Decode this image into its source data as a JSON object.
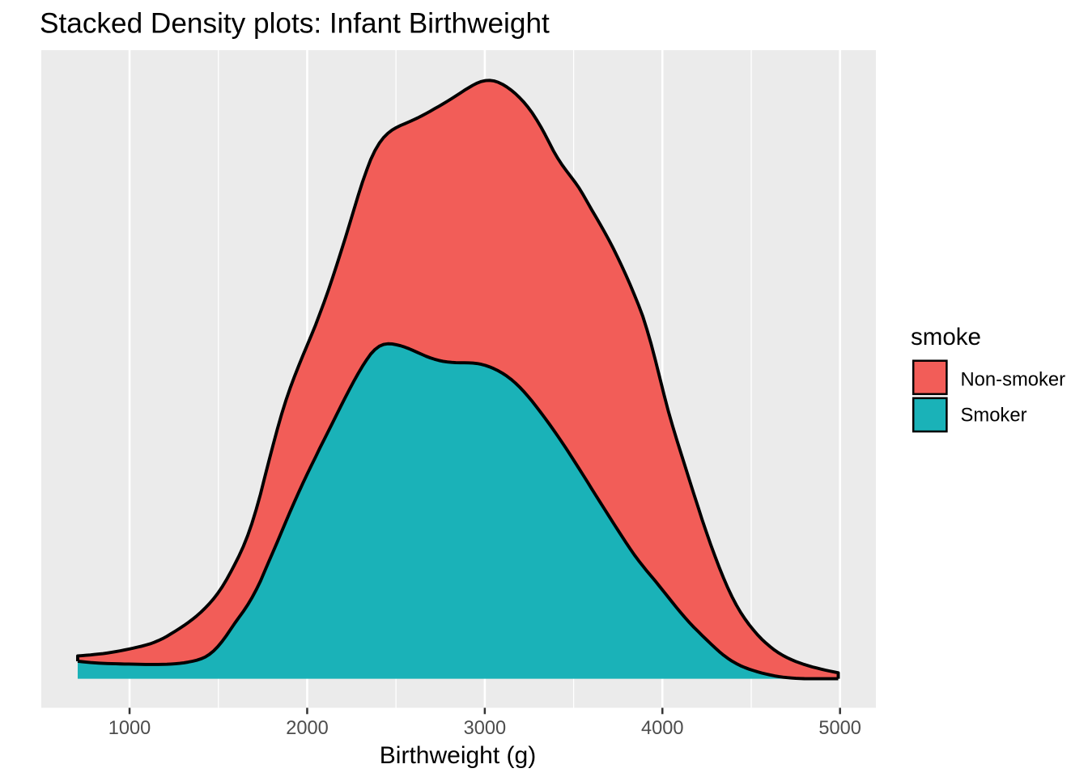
{
  "figure": {
    "title": "Stacked Density plots: Infant Birthweight",
    "x_axis": {
      "label": "Birthweight (g)"
    },
    "legend": {
      "title": "smoke",
      "entries": [
        {
          "label": "Non-smoker",
          "color": "#F25D58"
        },
        {
          "label": "Smoker",
          "color": "#1AB2B8"
        }
      ]
    }
  },
  "chart_data": {
    "type": "area",
    "subtype": "stacked-density",
    "title": "Stacked Density plots: Infant Birthweight",
    "xlabel": "Birthweight (g)",
    "ylabel": "",
    "x_ticks": [
      1000,
      2000,
      3000,
      4000,
      5000
    ],
    "x_minor_ticks": [
      500,
      1500,
      2500,
      3500,
      4500
    ],
    "xlim": [
      503,
      5202
    ],
    "ylim": [
      -0.0486,
      1.0505
    ],
    "y_unit": "relative density (stacked maximum = 1)",
    "grid": true,
    "legend_position": "right",
    "x": [
      708,
      732,
      756,
      780,
      804,
      827,
      851,
      875,
      899,
      923,
      947,
      971,
      995,
      1019,
      1043,
      1067,
      1091,
      1115,
      1138,
      1162,
      1186,
      1210,
      1234,
      1258,
      1282,
      1306,
      1330,
      1354,
      1378,
      1402,
      1426,
      1449,
      1473,
      1497,
      1521,
      1545,
      1569,
      1593,
      1617,
      1641,
      1665,
      1689,
      1713,
      1737,
      1760,
      1784,
      1808,
      1832,
      1856,
      1880,
      1904,
      1928,
      1952,
      1976,
      2000,
      2024,
      2048,
      2071,
      2095,
      2119,
      2143,
      2167,
      2191,
      2215,
      2239,
      2263,
      2287,
      2311,
      2335,
      2358,
      2382,
      2406,
      2430,
      2454,
      2478,
      2502,
      2526,
      2550,
      2574,
      2598,
      2622,
      2646,
      2669,
      2693,
      2717,
      2741,
      2765,
      2789,
      2813,
      2837,
      2861,
      2885,
      2909,
      2933,
      2957,
      2980,
      3004,
      3028,
      3052,
      3076,
      3100,
      3124,
      3148,
      3172,
      3196,
      3220,
      3244,
      3268,
      3291,
      3315,
      3339,
      3363,
      3387,
      3411,
      3435,
      3459,
      3483,
      3507,
      3531,
      3555,
      3579,
      3602,
      3626,
      3650,
      3674,
      3698,
      3722,
      3746,
      3770,
      3794,
      3818,
      3842,
      3866,
      3890,
      3913,
      3937,
      3961,
      3985,
      4009,
      4033,
      4057,
      4081,
      4105,
      4129,
      4153,
      4177,
      4201,
      4224,
      4248,
      4272,
      4296,
      4320,
      4344,
      4368,
      4392,
      4416,
      4440,
      4464,
      4488,
      4512,
      4535,
      4559,
      4583,
      4607,
      4631,
      4655,
      4679,
      4703,
      4727,
      4751,
      4775,
      4799,
      4823,
      4846,
      4870,
      4894,
      4918,
      4942,
      4966,
      4990
    ],
    "series": [
      {
        "name": "Smoker",
        "color": "#1AB2B8",
        "values": [
          0.0292,
          0.0285,
          0.0278,
          0.0271,
          0.0266,
          0.0261,
          0.0257,
          0.0254,
          0.0252,
          0.025,
          0.0248,
          0.0246,
          0.0245,
          0.0243,
          0.0242,
          0.024,
          0.0239,
          0.0238,
          0.0238,
          0.0239,
          0.024,
          0.0242,
          0.0246,
          0.0251,
          0.0257,
          0.0266,
          0.0278,
          0.0292,
          0.0309,
          0.0332,
          0.0363,
          0.0406,
          0.0464,
          0.0537,
          0.0623,
          0.072,
          0.0825,
          0.093,
          0.1029,
          0.1127,
          0.1234,
          0.1353,
          0.1486,
          0.1631,
          0.1791,
          0.1957,
          0.2121,
          0.2286,
          0.2456,
          0.2626,
          0.2792,
          0.2954,
          0.3113,
          0.3268,
          0.3419,
          0.3566,
          0.371,
          0.3853,
          0.3994,
          0.4135,
          0.4278,
          0.4421,
          0.4563,
          0.4703,
          0.4841,
          0.4974,
          0.5101,
          0.5221,
          0.5331,
          0.5427,
          0.5503,
          0.5556,
          0.5587,
          0.5598,
          0.5595,
          0.5582,
          0.5565,
          0.5542,
          0.5515,
          0.5484,
          0.5452,
          0.542,
          0.539,
          0.5363,
          0.534,
          0.532,
          0.5305,
          0.5294,
          0.5287,
          0.5283,
          0.5281,
          0.5281,
          0.5279,
          0.5276,
          0.5268,
          0.5255,
          0.5236,
          0.5211,
          0.5181,
          0.5146,
          0.5105,
          0.5058,
          0.5004,
          0.4943,
          0.4874,
          0.4799,
          0.4717,
          0.4632,
          0.4543,
          0.4451,
          0.4355,
          0.4258,
          0.4157,
          0.4055,
          0.395,
          0.3843,
          0.3733,
          0.3622,
          0.351,
          0.3398,
          0.3285,
          0.3173,
          0.306,
          0.2948,
          0.2835,
          0.2723,
          0.261,
          0.2499,
          0.2389,
          0.228,
          0.2173,
          0.207,
          0.1974,
          0.1884,
          0.1798,
          0.1714,
          0.1629,
          0.154,
          0.1451,
          0.1362,
          0.1273,
          0.1184,
          0.1098,
          0.1015,
          0.0935,
          0.086,
          0.079,
          0.0722,
          0.0653,
          0.0584,
          0.0517,
          0.0453,
          0.0394,
          0.0341,
          0.0294,
          0.0253,
          0.0217,
          0.0187,
          0.016,
          0.0137,
          0.0116,
          0.0096,
          0.0079,
          0.0063,
          0.0048,
          0.0036,
          0.0026,
          0.0018,
          0.0012,
          0.0007,
          0.0004,
          0.0001,
          0.0,
          0.0,
          0.0,
          0.0,
          0.0,
          0.0,
          0.0,
          0.0
        ]
      },
      {
        "name": "Non-smoker",
        "color": "#F25D58",
        "values": [
          0.0088,
          0.0101,
          0.0114,
          0.0127,
          0.014,
          0.0152,
          0.0163,
          0.0176,
          0.0189,
          0.0203,
          0.0218,
          0.0234,
          0.025,
          0.0267,
          0.0285,
          0.0303,
          0.0323,
          0.0344,
          0.0369,
          0.0398,
          0.043,
          0.0467,
          0.0506,
          0.0545,
          0.0584,
          0.0622,
          0.0661,
          0.07,
          0.0741,
          0.0781,
          0.0819,
          0.0848,
          0.0872,
          0.0892,
          0.091,
          0.0931,
          0.0955,
          0.0986,
          0.1029,
          0.1087,
          0.1158,
          0.1244,
          0.1343,
          0.1453,
          0.1565,
          0.1676,
          0.1785,
          0.1885,
          0.1965,
          0.2023,
          0.2064,
          0.2093,
          0.2115,
          0.2136,
          0.2154,
          0.2178,
          0.2208,
          0.2246,
          0.2296,
          0.2356,
          0.2424,
          0.2499,
          0.258,
          0.2666,
          0.2762,
          0.2865,
          0.2973,
          0.3077,
          0.3169,
          0.3252,
          0.3327,
          0.3394,
          0.3457,
          0.3517,
          0.3575,
          0.363,
          0.3682,
          0.3735,
          0.3793,
          0.3856,
          0.3921,
          0.3989,
          0.4056,
          0.4122,
          0.4186,
          0.4246,
          0.4303,
          0.4357,
          0.4408,
          0.4458,
          0.4506,
          0.4553,
          0.4598,
          0.4643,
          0.4687,
          0.4726,
          0.4761,
          0.4789,
          0.481,
          0.4822,
          0.4829,
          0.4832,
          0.4835,
          0.4837,
          0.4837,
          0.4837,
          0.4832,
          0.4821,
          0.4803,
          0.4776,
          0.4742,
          0.4701,
          0.4663,
          0.4643,
          0.4638,
          0.4648,
          0.4665,
          0.4681,
          0.4691,
          0.4685,
          0.4673,
          0.4664,
          0.4656,
          0.4645,
          0.4632,
          0.4614,
          0.459,
          0.4557,
          0.4517,
          0.4471,
          0.4416,
          0.4348,
          0.4269,
          0.4169,
          0.4038,
          0.3876,
          0.3689,
          0.3493,
          0.3297,
          0.3114,
          0.2955,
          0.2808,
          0.2667,
          0.2524,
          0.2378,
          0.2228,
          0.2079,
          0.1933,
          0.1793,
          0.1658,
          0.1531,
          0.1408,
          0.1291,
          0.1179,
          0.1075,
          0.098,
          0.0894,
          0.0816,
          0.0745,
          0.068,
          0.062,
          0.0566,
          0.0517,
          0.0472,
          0.0431,
          0.0395,
          0.0362,
          0.0333,
          0.0306,
          0.0281,
          0.0258,
          0.0236,
          0.0216,
          0.0196,
          0.0178,
          0.016,
          0.0143,
          0.0128,
          0.0113,
          0.0099
        ]
      }
    ],
    "stack_order": [
      "Smoker",
      "Non-smoker"
    ],
    "outline_color": "#000000",
    "panel_background": "#EBEBEB",
    "grid_color": "#FFFFFF"
  }
}
